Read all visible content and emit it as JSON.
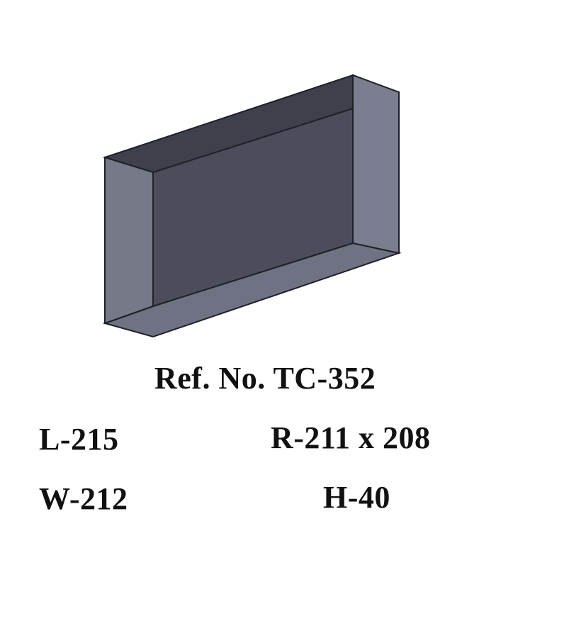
{
  "product": {
    "ref_label": "Ref. No. TC-352",
    "colors": {
      "back_panel": "#4b4d5c",
      "side_panel": "#767988",
      "bottom_panel": "#6f7282",
      "top_rim": "#3e404c",
      "outline": "#1f2028"
    }
  },
  "specs": {
    "length": "L-215",
    "radius": "R-211 x 208",
    "width": "W-212",
    "height": "H-40"
  }
}
